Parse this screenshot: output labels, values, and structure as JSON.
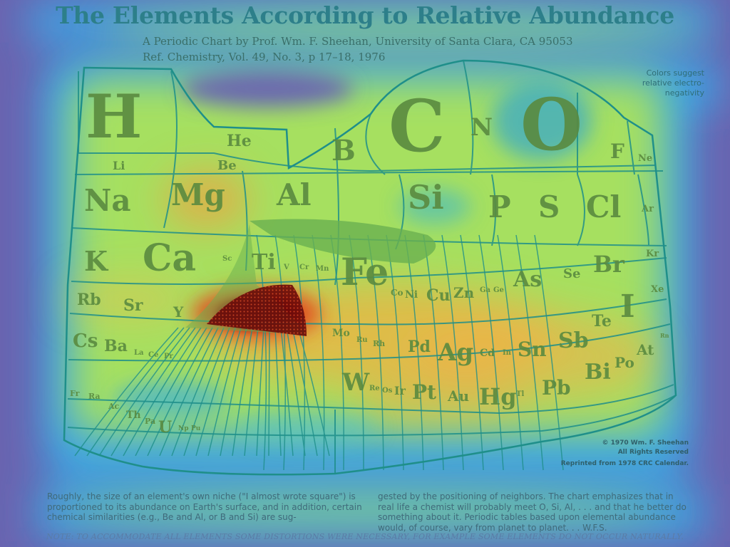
{
  "header": {
    "title": "The Elements According to Relative Abundance",
    "subtitle": "A Periodic Chart by Prof. Wm. F. Sheehan, University of Santa Clara, CA 95053",
    "reference": "Ref. Chemistry, Vol. 49, No. 3, p 17–18, 1976"
  },
  "side_note": "Colors suggest relative electro-negativity",
  "elements": {
    "H": "H",
    "He": "He",
    "Li": "Li",
    "Be": "Be",
    "B": "B",
    "C": "C",
    "N": "N",
    "O": "O",
    "F": "F",
    "Ne": "Ne",
    "Na": "Na",
    "Mg": "Mg",
    "Al": "Al",
    "Si": "Si",
    "P": "P",
    "S": "S",
    "Cl": "Cl",
    "Ar": "Ar",
    "K": "K",
    "Ca": "Ca",
    "Sc": "Sc",
    "Ti": "Ti",
    "V": "V",
    "Cr": "Cr",
    "Mn": "Mn",
    "Fe": "Fe",
    "Co": "Co",
    "Ni": "Ni",
    "Cu": "Cu",
    "Zn": "Zn",
    "Ga": "Ga",
    "Ge": "Ge",
    "As": "As",
    "Se": "Se",
    "Br": "Br",
    "Kr": "Kr",
    "Rb": "Rb",
    "Sr": "Sr",
    "Y": "Y",
    "Mo": "Mo",
    "Ru": "Ru",
    "Rh": "Rh",
    "Pd": "Pd",
    "Ag": "Ag",
    "Cd": "Cd",
    "In": "In",
    "Sn": "Sn",
    "Sb": "Sb",
    "Te": "Te",
    "I": "I",
    "Xe": "Xe",
    "Cs": "Cs",
    "Ba": "Ba",
    "La": "La",
    "Ce": "Ce",
    "Pr": "Pr",
    "W": "W",
    "Re": "Re",
    "Os": "Os",
    "Ir": "Ir",
    "Pt": "Pt",
    "Au": "Au",
    "Hg": "Hg",
    "Tl": "Tl",
    "Pb": "Pb",
    "Bi": "Bi",
    "Po": "Po",
    "At": "At",
    "Rn": "Rn",
    "Fr": "Fr",
    "Ra": "Ra",
    "Ac": "Ac",
    "Th": "Th",
    "Pa": "Pa",
    "U": "U",
    "Np": "Np",
    "Pu": "Pu"
  },
  "copyright": {
    "line1": "© 1970 Wm. F. Sheehan",
    "line2": "All Rights Reserved"
  },
  "reprint": "Reprinted from 1978 CRC Calendar.",
  "body": {
    "col1": "Roughly, the size of an element's own niche (\"I almost wrote square\") is proportioned to its abundance on Earth's surface, and in addition, certain chemical similarities (e.g., Be and Al, or B and Si) are sug-",
    "col2": "gested by the positioning of neighbors. The chart emphasizes that in real life a chemist will probably meet O, Si, Al, . . . and that he better do something about it. Periodic tables based upon elemental abundance would, of course, vary from planet to planet. . . W.F.S."
  },
  "footnote": "NOTE: TO ACCOMMODATE ALL ELEMENTS SOME DISTORTIONS WERE NECESSARY, FOR EXAMPLE SOME ELEMENTS DO NOT OCCUR NATURALLY.",
  "colors": {
    "background": "#6a64b0",
    "heat_cool": "#2fa8e0",
    "heat_mid": "#a8e060",
    "heat_warm": "#f0b040",
    "heat_hot": "#b01010",
    "grid_line": "#1f8f8a"
  }
}
